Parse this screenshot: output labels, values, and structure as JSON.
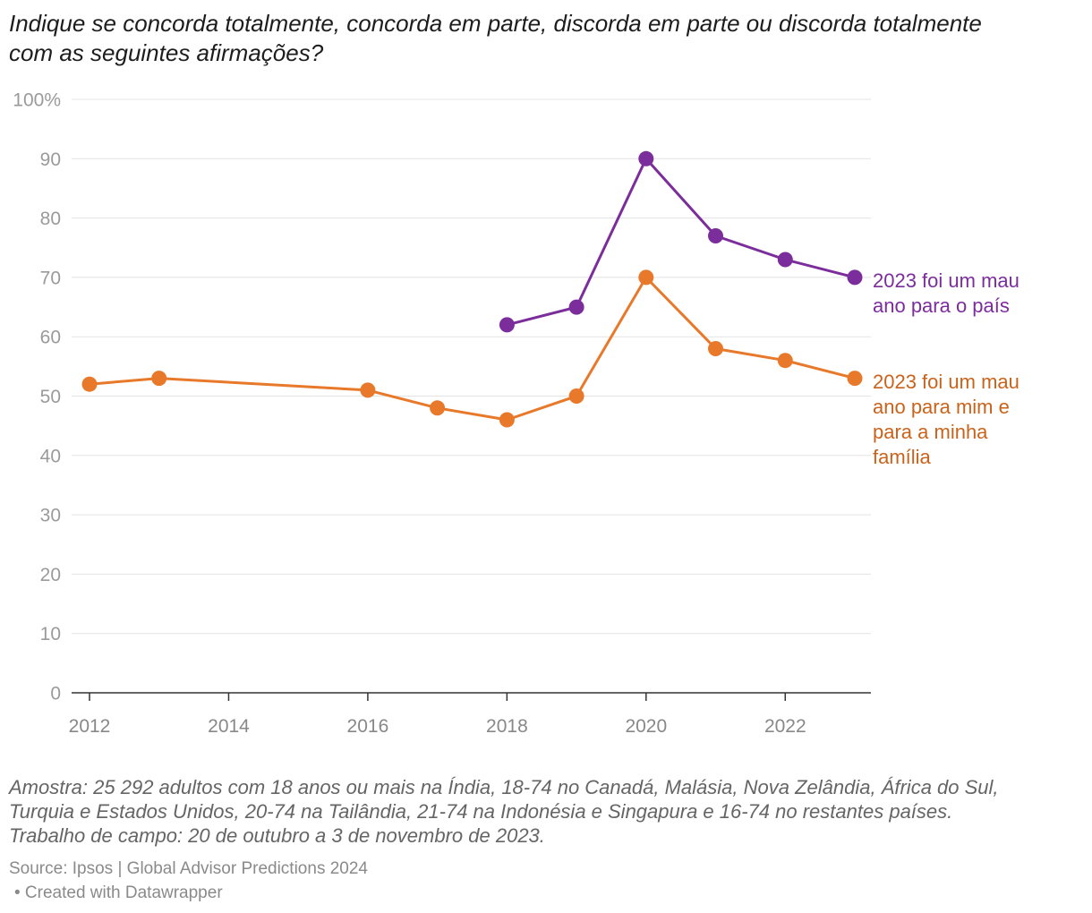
{
  "chart_data": {
    "type": "line",
    "title": "Indique se concorda totalmente, concorda em parte, discorda em parte ou discorda totalmente com as seguintes afirmações?",
    "xlabel": "",
    "ylabel": "",
    "xlim": [
      2012,
      2023
    ],
    "ylim": [
      0,
      100
    ],
    "xticks": [
      2012,
      2014,
      2016,
      2018,
      2020,
      2022
    ],
    "xtick_labels": [
      "2012",
      "2014",
      "2016",
      "2018",
      "2020",
      "2022"
    ],
    "yticks": [
      0,
      10,
      20,
      30,
      40,
      50,
      60,
      70,
      80,
      90,
      100
    ],
    "ytick_labels": [
      "0",
      "10",
      "20",
      "30",
      "40",
      "50",
      "60",
      "70",
      "80",
      "90",
      "100%"
    ],
    "grid": true,
    "legend": "right",
    "series": [
      {
        "name": "2023 foi um mau ano para o país",
        "color": "#7b2d9b",
        "label_color": "#7b2d9b",
        "x": [
          2018,
          2019,
          2020,
          2021,
          2022,
          2023
        ],
        "y": [
          62,
          65,
          90,
          77,
          73,
          70
        ]
      },
      {
        "name": "2023 foi um mau ano para mim e para a minha família",
        "color": "#e8792a",
        "label_color": "#c9631b",
        "x": [
          2012,
          2013,
          2016,
          2017,
          2018,
          2019,
          2020,
          2021,
          2022,
          2023
        ],
        "y": [
          52,
          53,
          51,
          48,
          46,
          50,
          70,
          58,
          56,
          53
        ]
      }
    ]
  },
  "notes": [
    "Amostra: 25 292 adultos com 18 anos ou mais na Índia, 18-74 no Canadá, Malásia, Nova Zelândia, África do Sul, Turquia e Estados Unidos, 20-74 na Tailândia, 21-74 na Indonésia e Singapura e 16-74 no restantes países.",
    "Trabalho de campo: 20 de outubro a 3 de novembro de 2023."
  ],
  "source": "Source: Ipsos | Global Advisor Predictions 2024",
  "credit": "• Created with Datawrapper"
}
